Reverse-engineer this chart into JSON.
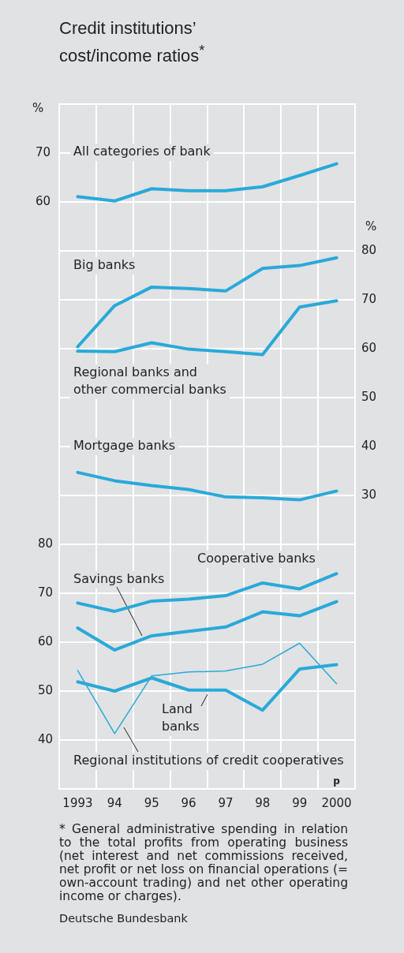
{
  "chart_data": {
    "type": "line",
    "title": "Credit institutions’ cost/income ratios$^{*}$",
    "ylabel": "%",
    "y2label": "%",
    "categories": [
      "1993",
      "94",
      "95",
      "96",
      "97",
      "98",
      "99",
      "2000"
    ],
    "ylim": [
      -60,
      80
    ],
    "yticks": [
      60,
      70
    ],
    "y2lim": [
      -30,
      110
    ],
    "y2ticks": [
      30,
      40,
      50,
      60,
      70,
      80
    ],
    "y3lim": [
      30,
      170
    ],
    "y3ticks": [
      40,
      50,
      60,
      70,
      80
    ],
    "grid": true,
    "marker": "none",
    "line_style": "solid",
    "series": [
      {
        "name": "All categories of bank",
        "color": "#29a9d9",
        "values": [
          61.1,
          60.2,
          62.7,
          62.3,
          62.3,
          63.1,
          65.4,
          67.8
        ]
      },
      {
        "name": "Big banks",
        "color": "#29a9d9",
        "axis": "y2",
        "values": [
          60.4,
          68.8,
          72.6,
          72.3,
          71.8,
          76.4,
          77.0,
          78.6
        ]
      },
      {
        "name": "Regional banks and other commercial banks",
        "color": "#29a9d9",
        "axis": "y2",
        "values": [
          59.5,
          59.4,
          61.2,
          59.9,
          59.4,
          58.8,
          68.5,
          69.8
        ]
      },
      {
        "name": "Mortgage banks",
        "color": "#29a9d9",
        "axis": "y2",
        "values": [
          34.7,
          33.0,
          32.0,
          31.2,
          29.7,
          29.5,
          29.1,
          30.9
        ]
      },
      {
        "name": "Cooperative banks",
        "color": "#29a9d9",
        "axis": "y3",
        "values": [
          68.0,
          66.3,
          68.4,
          68.8,
          69.5,
          72.1,
          70.9,
          74.0
        ]
      },
      {
        "name": "Savings banks",
        "color": "#29a9d9",
        "axis": "y3",
        "values": [
          62.9,
          58.4,
          61.3,
          62.2,
          63.1,
          66.2,
          65.4,
          68.3
        ]
      },
      {
        "name": "Land banks",
        "color": "#29a9d9",
        "axis": "y3",
        "values": [
          51.9,
          50.0,
          52.7,
          50.2,
          50.2,
          46.1,
          54.5,
          55.4
        ]
      },
      {
        "name": "Regional institutions of credit cooperatives",
        "color": "#29a9d9",
        "axis": "y3",
        "values": [
          54.2,
          41.3,
          53.1,
          53.9,
          54.1,
          55.5,
          59.8,
          51.5
        ]
      }
    ],
    "annotations": [
      "p",
      "* General administrative spending in relation to the total profits from operating business (net interest and net commissions received, net profit or net loss on financial operations (= own-account trading) and net other operating income or charges).",
      "Deutsche Bundesbank"
    ]
  }
}
